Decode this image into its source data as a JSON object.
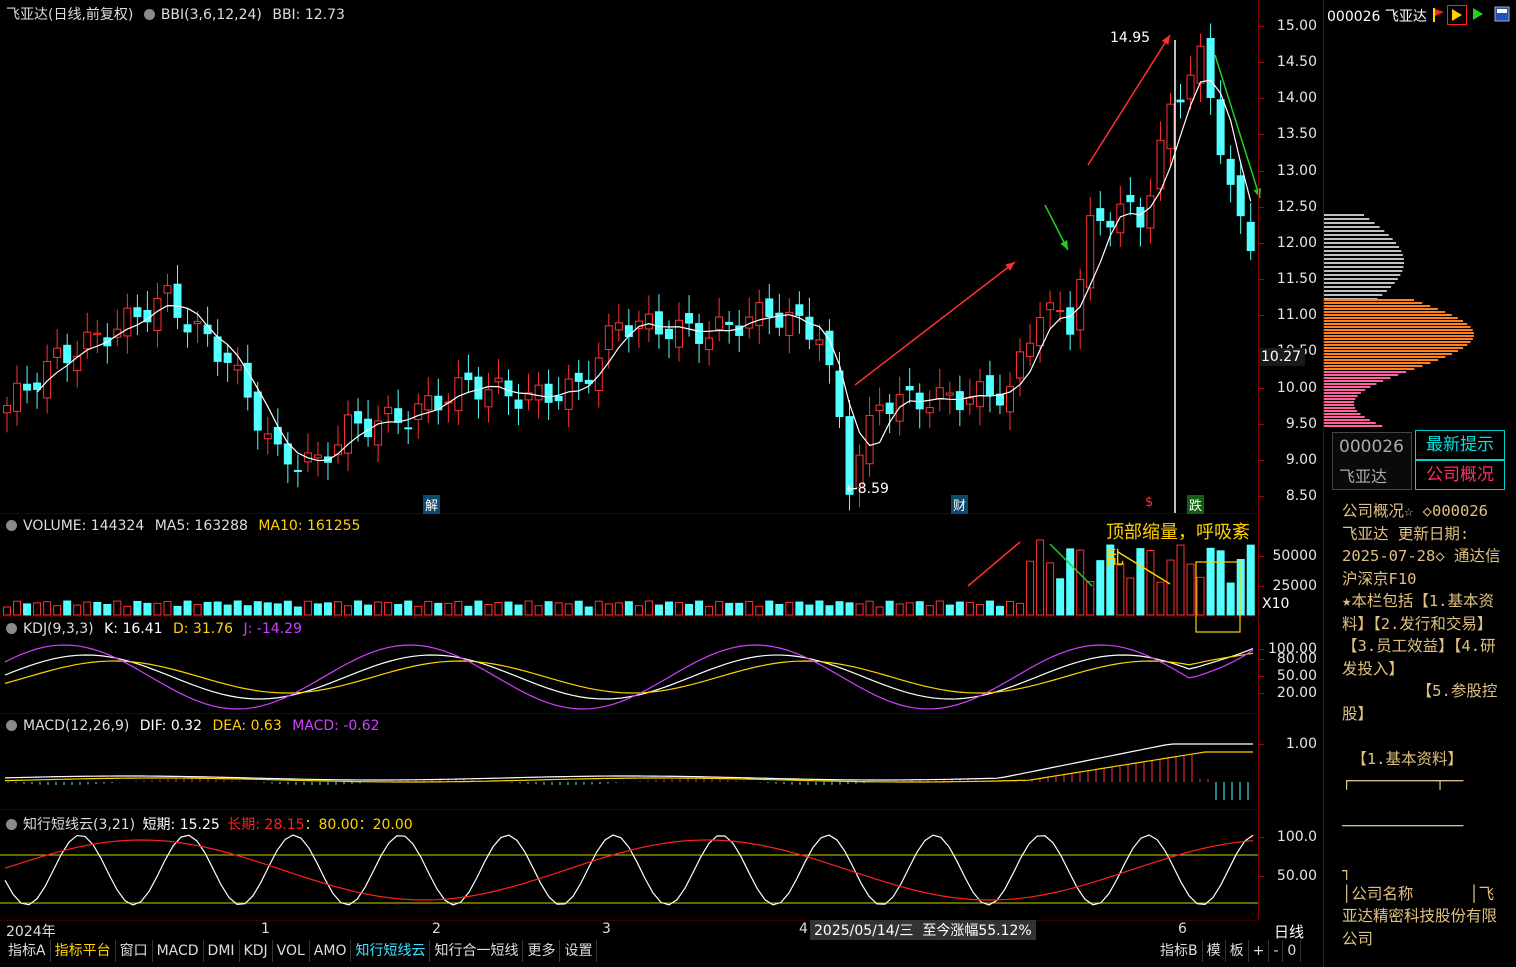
{
  "header": {
    "stock_name": "飞亚达",
    "period": "(日线,前复权)",
    "indicator": "BBI(3,6,12,24)",
    "indicator_value": "BBI: 12.73"
  },
  "price_axis": [
    "15.00",
    "14.50",
    "14.00",
    "13.50",
    "13.00",
    "12.50",
    "12.00",
    "11.50",
    "11.00",
    "10.50",
    "10.00",
    "9.50",
    "9.00",
    "8.50"
  ],
  "price_marker": "10.27",
  "annotations": {
    "high": "14.95",
    "low": "←8.59",
    "high_arrow": "←",
    "event_jie": "解",
    "event_cai": "财",
    "event_s": "$",
    "event_die": "跌",
    "volume_note": "顶部缩量，呼吸紊乱"
  },
  "volume": {
    "label": "VOLUME: 144324",
    "ma5": "MA5: 163288",
    "ma10": "MA10: 161255",
    "axis": [
      "50000",
      "25000"
    ],
    "unit": "X10"
  },
  "kdj": {
    "label": "KDJ(9,3,3)",
    "k": "K: 16.41",
    "d": "D: 31.76",
    "j": "J: -14.29",
    "axis": [
      "100.00",
      "80.00",
      "50.00",
      "20.00"
    ]
  },
  "macd": {
    "label": "MACD(12,26,9)",
    "dif": "DIF: 0.32",
    "dea": "DEA: 0.63",
    "macd": "MACD: -0.62",
    "axis": [
      "1.00"
    ]
  },
  "cloud": {
    "label": "知行短线云(3,21)",
    "short": "短期: 15.25",
    "long": "长期: 28.15",
    "lines": "：80.00：20.00",
    "axis": [
      "100.0",
      "50.00"
    ]
  },
  "time_axis": {
    "year": "2024年",
    "labels": [
      "1",
      "2",
      "3",
      "4",
      "6"
    ],
    "cursor_date": "2025/05/14/三",
    "cursor_change": "至今涨幅55.12%",
    "period_button": "日线"
  },
  "bottom_tabs": [
    "指标A",
    "指标平台",
    "窗口",
    "MACD",
    "DMI",
    "KDJ",
    "VOL",
    "AMO",
    "知行短线云",
    "知行合一短线",
    "更多",
    "设置"
  ],
  "bottom_right": [
    "指标B",
    "模",
    "板",
    "+",
    "-",
    "0"
  ],
  "right_panel": {
    "code_name": "000026 飞亚达",
    "code": "000026",
    "name": "飞亚达",
    "latest_tip": "最新提示",
    "company_profile": "公司概况",
    "f10_lines": [
      "公司概况☆ ◇000026",
      "飞亚达 更新日期:",
      "2025-07-28◇ 通达信",
      "沪深京F10",
      "★本栏包括【1.基本资",
      "料】【2.发行和交易】",
      "【3.员工效益】【4.研",
      "发投入】",
      "        【5.参股控",
      "股】",
      "",
      " 【1.基本资料】",
      "┌─────────┬──",
      "",
      "─────────────",
      "",
      "┐",
      "│公司名称      │飞",
      "亚达精密科技股份有限",
      "公司"
    ]
  },
  "colors": {
    "up": "#ff3232",
    "down": "#54ffff",
    "bbi": "#ffffff",
    "ma10": "#ffd200",
    "j": "#d040ff",
    "long": "#ff2020",
    "axis_red": "#aa0000"
  }
}
